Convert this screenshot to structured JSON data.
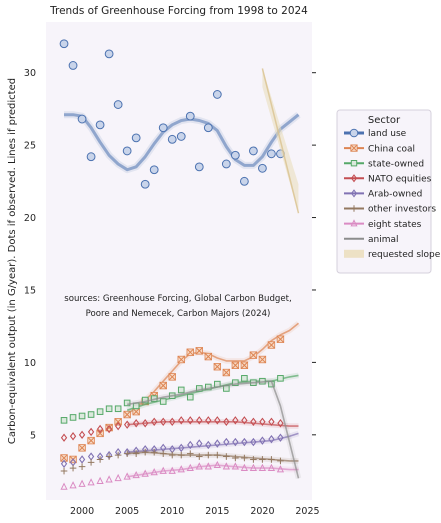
{
  "chart_data": {
    "type": "scatter",
    "title": "Trends of Greenhouse Forcing from 1998 to 2024",
    "ylabel": "Carbon-equivalent output (in G/year). Dots if observed. Lines if predicted",
    "xlabel": "",
    "xlim": [
      1996,
      2025.5
    ],
    "ylim": [
      0.5,
      33.5
    ],
    "xticks": [
      2000,
      2005,
      2010,
      2015,
      2020,
      2025
    ],
    "yticks": [
      5,
      10,
      15,
      20,
      25,
      30
    ],
    "grid": false,
    "annotation": [
      "sources: Greenhouse Forcing, Global Carbon Budget,",
      "Poore and Nemecek, Carbon Majors (2024)"
    ],
    "legend": {
      "title": "Sector",
      "placement": "right"
    },
    "series": [
      {
        "name": "land use",
        "color": "#4c72b0",
        "marker": "circle",
        "x": [
          1998,
          1999,
          2000,
          2001,
          2002,
          2003,
          2004,
          2005,
          2006,
          2007,
          2008,
          2009,
          2010,
          2011,
          2012,
          2013,
          2014,
          2015,
          2016,
          2017,
          2018,
          2019,
          2020,
          2021,
          2022
        ],
        "y": [
          32.0,
          30.5,
          26.8,
          24.2,
          26.4,
          31.3,
          27.8,
          24.6,
          25.5,
          22.3,
          23.3,
          26.2,
          25.4,
          25.6,
          27.0,
          23.5,
          26.2,
          28.5,
          23.7,
          24.3,
          22.5,
          24.6,
          23.4,
          24.4,
          24.4
        ],
        "trend_x": [
          1998,
          1999,
          2000,
          2001,
          2002,
          2003,
          2004,
          2005,
          2006,
          2007,
          2008,
          2009,
          2010,
          2011,
          2012,
          2013,
          2014,
          2015,
          2016,
          2017,
          2018,
          2019,
          2020,
          2021,
          2022,
          2023,
          2024
        ],
        "trend_y": [
          27.1,
          27.1,
          27.0,
          26.2,
          25.2,
          24.3,
          23.7,
          23.3,
          23.5,
          24.2,
          25.1,
          25.9,
          26.4,
          26.7,
          26.8,
          26.7,
          26.5,
          26.0,
          24.9,
          24.0,
          23.6,
          23.6,
          24.2,
          25.2,
          26.1,
          26.6,
          27.1
        ]
      },
      {
        "name": "China coal",
        "color": "#dd8452",
        "marker": "x-square",
        "x": [
          1998,
          1999,
          2000,
          2001,
          2002,
          2003,
          2004,
          2005,
          2006,
          2007,
          2008,
          2009,
          2010,
          2011,
          2012,
          2013,
          2014,
          2015,
          2016,
          2017,
          2018,
          2019,
          2020,
          2021,
          2022
        ],
        "y": [
          3.4,
          3.3,
          4.1,
          4.6,
          5.1,
          5.5,
          5.9,
          6.4,
          6.6,
          7.3,
          7.7,
          8.4,
          9.0,
          10.2,
          10.7,
          10.8,
          10.4,
          9.7,
          9.3,
          9.8,
          9.8,
          10.5,
          10.2,
          11.2,
          11.6
        ],
        "trend_x": [
          2005,
          2006,
          2007,
          2008,
          2009,
          2010,
          2011,
          2012,
          2013,
          2014,
          2015,
          2016,
          2017,
          2018,
          2019,
          2020,
          2021,
          2022,
          2023,
          2024
        ],
        "trend_y": [
          6.4,
          6.9,
          7.4,
          8.0,
          8.7,
          9.4,
          10.1,
          10.6,
          10.7,
          10.6,
          10.3,
          10.1,
          10.1,
          10.1,
          10.4,
          10.9,
          11.5,
          11.9,
          12.2,
          12.7
        ]
      },
      {
        "name": "state-owned",
        "color": "#55a868",
        "marker": "square",
        "x": [
          1998,
          1999,
          2000,
          2001,
          2002,
          2003,
          2004,
          2005,
          2006,
          2007,
          2008,
          2009,
          2010,
          2011,
          2012,
          2013,
          2014,
          2015,
          2016,
          2017,
          2018,
          2019,
          2020,
          2021,
          2022
        ],
        "y": [
          6.0,
          6.2,
          6.3,
          6.4,
          6.6,
          6.8,
          6.8,
          7.2,
          7.0,
          7.4,
          7.5,
          7.3,
          7.7,
          8.1,
          7.6,
          8.2,
          8.3,
          8.5,
          8.2,
          8.6,
          8.9,
          8.6,
          8.7,
          8.5,
          8.9
        ],
        "trend_x": [
          2005,
          2007,
          2009,
          2011,
          2013,
          2015,
          2017,
          2019,
          2021,
          2023,
          2024
        ],
        "trend_y": [
          6.7,
          7.1,
          7.4,
          7.7,
          8.0,
          8.3,
          8.6,
          8.7,
          8.7,
          9.0,
          9.1
        ]
      },
      {
        "name": "NATO equities",
        "color": "#c44e52",
        "marker": "diamond",
        "x": [
          1998,
          1999,
          2000,
          2001,
          2002,
          2003,
          2004,
          2005,
          2006,
          2007,
          2008,
          2009,
          2010,
          2011,
          2012,
          2013,
          2014,
          2015,
          2016,
          2017,
          2018,
          2019,
          2020,
          2021,
          2022
        ],
        "y": [
          4.8,
          4.9,
          5.0,
          5.2,
          5.4,
          5.4,
          5.6,
          5.7,
          5.8,
          5.8,
          5.9,
          5.9,
          5.9,
          6.0,
          6.0,
          6.0,
          6.0,
          6.0,
          5.9,
          6.0,
          6.0,
          5.9,
          5.9,
          5.9,
          5.8
        ],
        "trend_x": [
          2005,
          2007,
          2009,
          2011,
          2013,
          2015,
          2017,
          2019,
          2021,
          2023,
          2024
        ],
        "trend_y": [
          5.7,
          5.8,
          5.9,
          5.9,
          5.9,
          5.9,
          5.9,
          5.8,
          5.7,
          5.6,
          5.6
        ]
      },
      {
        "name": "Arab-owned",
        "color": "#8172b3",
        "marker": "diamond",
        "x": [
          1998,
          1999,
          2000,
          2001,
          2002,
          2003,
          2004,
          2005,
          2006,
          2007,
          2008,
          2009,
          2010,
          2011,
          2012,
          2013,
          2014,
          2015,
          2016,
          2017,
          2018,
          2019,
          2020,
          2021,
          2022
        ],
        "y": [
          3.0,
          3.1,
          3.3,
          3.5,
          3.5,
          3.6,
          3.8,
          3.8,
          3.9,
          4.0,
          4.0,
          4.1,
          4.0,
          4.1,
          4.3,
          4.4,
          4.3,
          4.4,
          4.5,
          4.5,
          4.5,
          4.5,
          4.6,
          4.7,
          4.8
        ],
        "trend_x": [
          2005,
          2007,
          2009,
          2011,
          2013,
          2015,
          2017,
          2019,
          2021,
          2023,
          2024
        ],
        "trend_y": [
          3.8,
          3.9,
          4.0,
          4.1,
          4.2,
          4.3,
          4.4,
          4.5,
          4.6,
          4.9,
          5.1
        ]
      },
      {
        "name": "other investors",
        "color": "#937860",
        "marker": "plus",
        "x": [
          1998,
          1999,
          2000,
          2001,
          2002,
          2003,
          2004,
          2005,
          2006,
          2007,
          2008,
          2009,
          2010,
          2011,
          2012,
          2013,
          2014,
          2015,
          2016,
          2017,
          2018,
          2019,
          2020,
          2021,
          2022
        ],
        "y": [
          2.5,
          2.7,
          2.8,
          3.1,
          3.3,
          3.5,
          3.6,
          3.7,
          3.7,
          3.8,
          3.8,
          3.7,
          3.6,
          3.6,
          3.7,
          3.5,
          3.6,
          3.6,
          3.5,
          3.4,
          3.4,
          3.3,
          3.3,
          3.3,
          3.2
        ],
        "trend_x": [
          2005,
          2007,
          2009,
          2011,
          2013,
          2015,
          2017,
          2019,
          2021,
          2023,
          2024
        ],
        "trend_y": [
          3.7,
          3.8,
          3.7,
          3.6,
          3.6,
          3.6,
          3.5,
          3.4,
          3.3,
          3.2,
          3.2
        ]
      },
      {
        "name": "eight states",
        "color": "#da8bc3",
        "marker": "triangle",
        "x": [
          1998,
          1999,
          2000,
          2001,
          2002,
          2003,
          2004,
          2005,
          2006,
          2007,
          2008,
          2009,
          2010,
          2011,
          2012,
          2013,
          2014,
          2015,
          2016,
          2017,
          2018,
          2019,
          2020,
          2021,
          2022
        ],
        "y": [
          1.4,
          1.5,
          1.6,
          1.7,
          1.8,
          1.9,
          2.0,
          2.1,
          2.2,
          2.3,
          2.4,
          2.5,
          2.5,
          2.6,
          2.7,
          2.8,
          2.8,
          2.9,
          2.8,
          2.8,
          2.7,
          2.7,
          2.7,
          2.7,
          2.6
        ],
        "trend_x": [
          2005,
          2007,
          2009,
          2011,
          2013,
          2015,
          2017,
          2019,
          2021,
          2023,
          2024
        ],
        "trend_y": [
          2.1,
          2.3,
          2.5,
          2.6,
          2.8,
          2.9,
          2.8,
          2.7,
          2.7,
          2.6,
          2.6
        ]
      },
      {
        "name": "animal",
        "color": "#8c8c8c",
        "marker": "none",
        "x": [],
        "y": [],
        "trend_x": [
          2005,
          2007,
          2009,
          2011,
          2013,
          2015,
          2017,
          2019,
          2021,
          2022,
          2023,
          2024
        ],
        "trend_y": [
          7.1,
          7.3,
          7.6,
          7.8,
          8.1,
          8.3,
          8.5,
          8.6,
          8.7,
          7.0,
          4.5,
          2.0
        ]
      },
      {
        "name": "requested slope",
        "color": "#e3cfa0",
        "marker": "none",
        "x": [],
        "y": [],
        "trend_x": [
          2020,
          2024
        ],
        "trend_y": [
          30.3,
          20.3
        ]
      }
    ]
  }
}
